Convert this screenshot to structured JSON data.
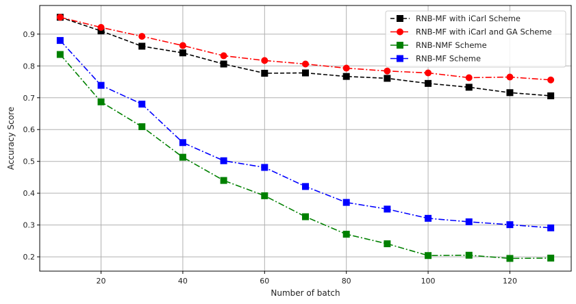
{
  "chart_data": {
    "type": "line",
    "xlabel": "Number of batch",
    "ylabel": "Accuracy Score",
    "xlim": [
      5,
      135
    ],
    "ylim": [
      0.155,
      0.99
    ],
    "x_ticks": [
      20,
      40,
      60,
      80,
      100,
      120
    ],
    "x_tick_labels": [
      "20",
      "40",
      "60",
      "80",
      "100",
      "120"
    ],
    "y_ticks": [
      0.2,
      0.3,
      0.4,
      0.5,
      0.6,
      0.7,
      0.8,
      0.9
    ],
    "y_tick_labels": [
      "0.2",
      "0.3",
      "0.4",
      "0.5",
      "0.6",
      "0.7",
      "0.8",
      "0.9"
    ],
    "grid": true,
    "legend_position": "top-right",
    "x": [
      10,
      20,
      30,
      40,
      50,
      60,
      70,
      80,
      90,
      100,
      110,
      120,
      130
    ],
    "series": [
      {
        "name": "RNB-MF with iCarl Scheme",
        "color": "#000000",
        "line_style": "dashed",
        "marker": "square",
        "values": [
          0.953,
          0.91,
          0.862,
          0.841,
          0.806,
          0.777,
          0.778,
          0.767,
          0.761,
          0.745,
          0.733,
          0.716,
          0.706
        ]
      },
      {
        "name": "RNB-MF with iCarl and GA Scheme",
        "color": "#ff0000",
        "line_style": "dashdot",
        "marker": "circle",
        "values": [
          0.953,
          0.921,
          0.893,
          0.864,
          0.832,
          0.817,
          0.806,
          0.793,
          0.784,
          0.778,
          0.763,
          0.765,
          0.756
        ]
      },
      {
        "name": "RNB-NMF Scheme",
        "color": "#008000",
        "line_style": "dashdot",
        "marker": "square",
        "values": [
          0.836,
          0.687,
          0.609,
          0.513,
          0.44,
          0.392,
          0.326,
          0.271,
          0.241,
          0.204,
          0.205,
          0.195,
          0.196
        ]
      },
      {
        "name": "RNB-MF Scheme",
        "color": "#0000ff",
        "line_style": "dashdot",
        "marker": "square",
        "values": [
          0.88,
          0.739,
          0.68,
          0.559,
          0.502,
          0.481,
          0.421,
          0.371,
          0.35,
          0.321,
          0.31,
          0.301,
          0.291
        ]
      }
    ]
  }
}
